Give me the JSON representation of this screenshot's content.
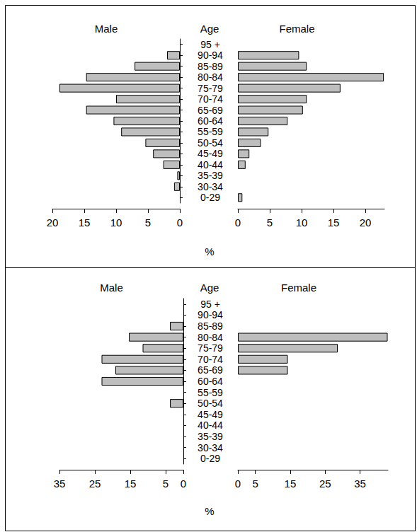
{
  "chart_data": [
    {
      "type": "bar",
      "orientation": "horizontal",
      "ylabel": "Age",
      "xlabel": "%",
      "categories": [
        "0-29",
        "30-34",
        "35-39",
        "40-44",
        "45-49",
        "50-54",
        "55-59",
        "60-64",
        "65-69",
        "70-74",
        "75-79",
        "80-84",
        "85-89",
        "90-94",
        "95 +"
      ],
      "series": [
        {
          "name": "Male",
          "color": "#bebebe",
          "values": [
            0,
            0.9,
            0.4,
            2.6,
            4.2,
            5.4,
            9.2,
            10.4,
            14.7,
            10.0,
            18.9,
            14.7,
            7.1,
            2.0,
            0
          ],
          "xlim": [
            0,
            20
          ],
          "xticks": [
            0,
            5,
            10,
            15,
            20
          ]
        },
        {
          "name": "Female",
          "color": "#bebebe",
          "values": [
            0.7,
            0,
            0,
            1.2,
            1.8,
            3.6,
            4.8,
            7.8,
            10.2,
            10.8,
            16.1,
            22.9,
            10.8,
            9.6,
            0
          ],
          "xlim": [
            0,
            23
          ],
          "xticks": [
            0,
            5,
            10,
            15,
            20
          ]
        }
      ]
    },
    {
      "type": "bar",
      "orientation": "horizontal",
      "ylabel": "Age",
      "xlabel": "%",
      "categories": [
        "0-29",
        "30-34",
        "35-39",
        "40-44",
        "45-49",
        "50-54",
        "55-59",
        "60-64",
        "65-69",
        "70-74",
        "75-79",
        "80-84",
        "85-89",
        "90-94",
        "95 +"
      ],
      "series": [
        {
          "name": "Male",
          "color": "#bebebe",
          "values": [
            0,
            0,
            0,
            0,
            0,
            3.8,
            0,
            23.1,
            19.2,
            23.1,
            11.5,
            15.4,
            3.8,
            0,
            0
          ],
          "xlim": [
            0,
            35
          ],
          "xticks": [
            0,
            5,
            15,
            25,
            35
          ]
        },
        {
          "name": "Female",
          "color": "#bebebe",
          "values": [
            0,
            0,
            0,
            0,
            0,
            0,
            0,
            0,
            14.3,
            14.3,
            28.6,
            42.9,
            0,
            0,
            0
          ],
          "xlim": [
            0,
            43
          ],
          "xticks": [
            0,
            5,
            15,
            25,
            35
          ]
        }
      ]
    }
  ]
}
